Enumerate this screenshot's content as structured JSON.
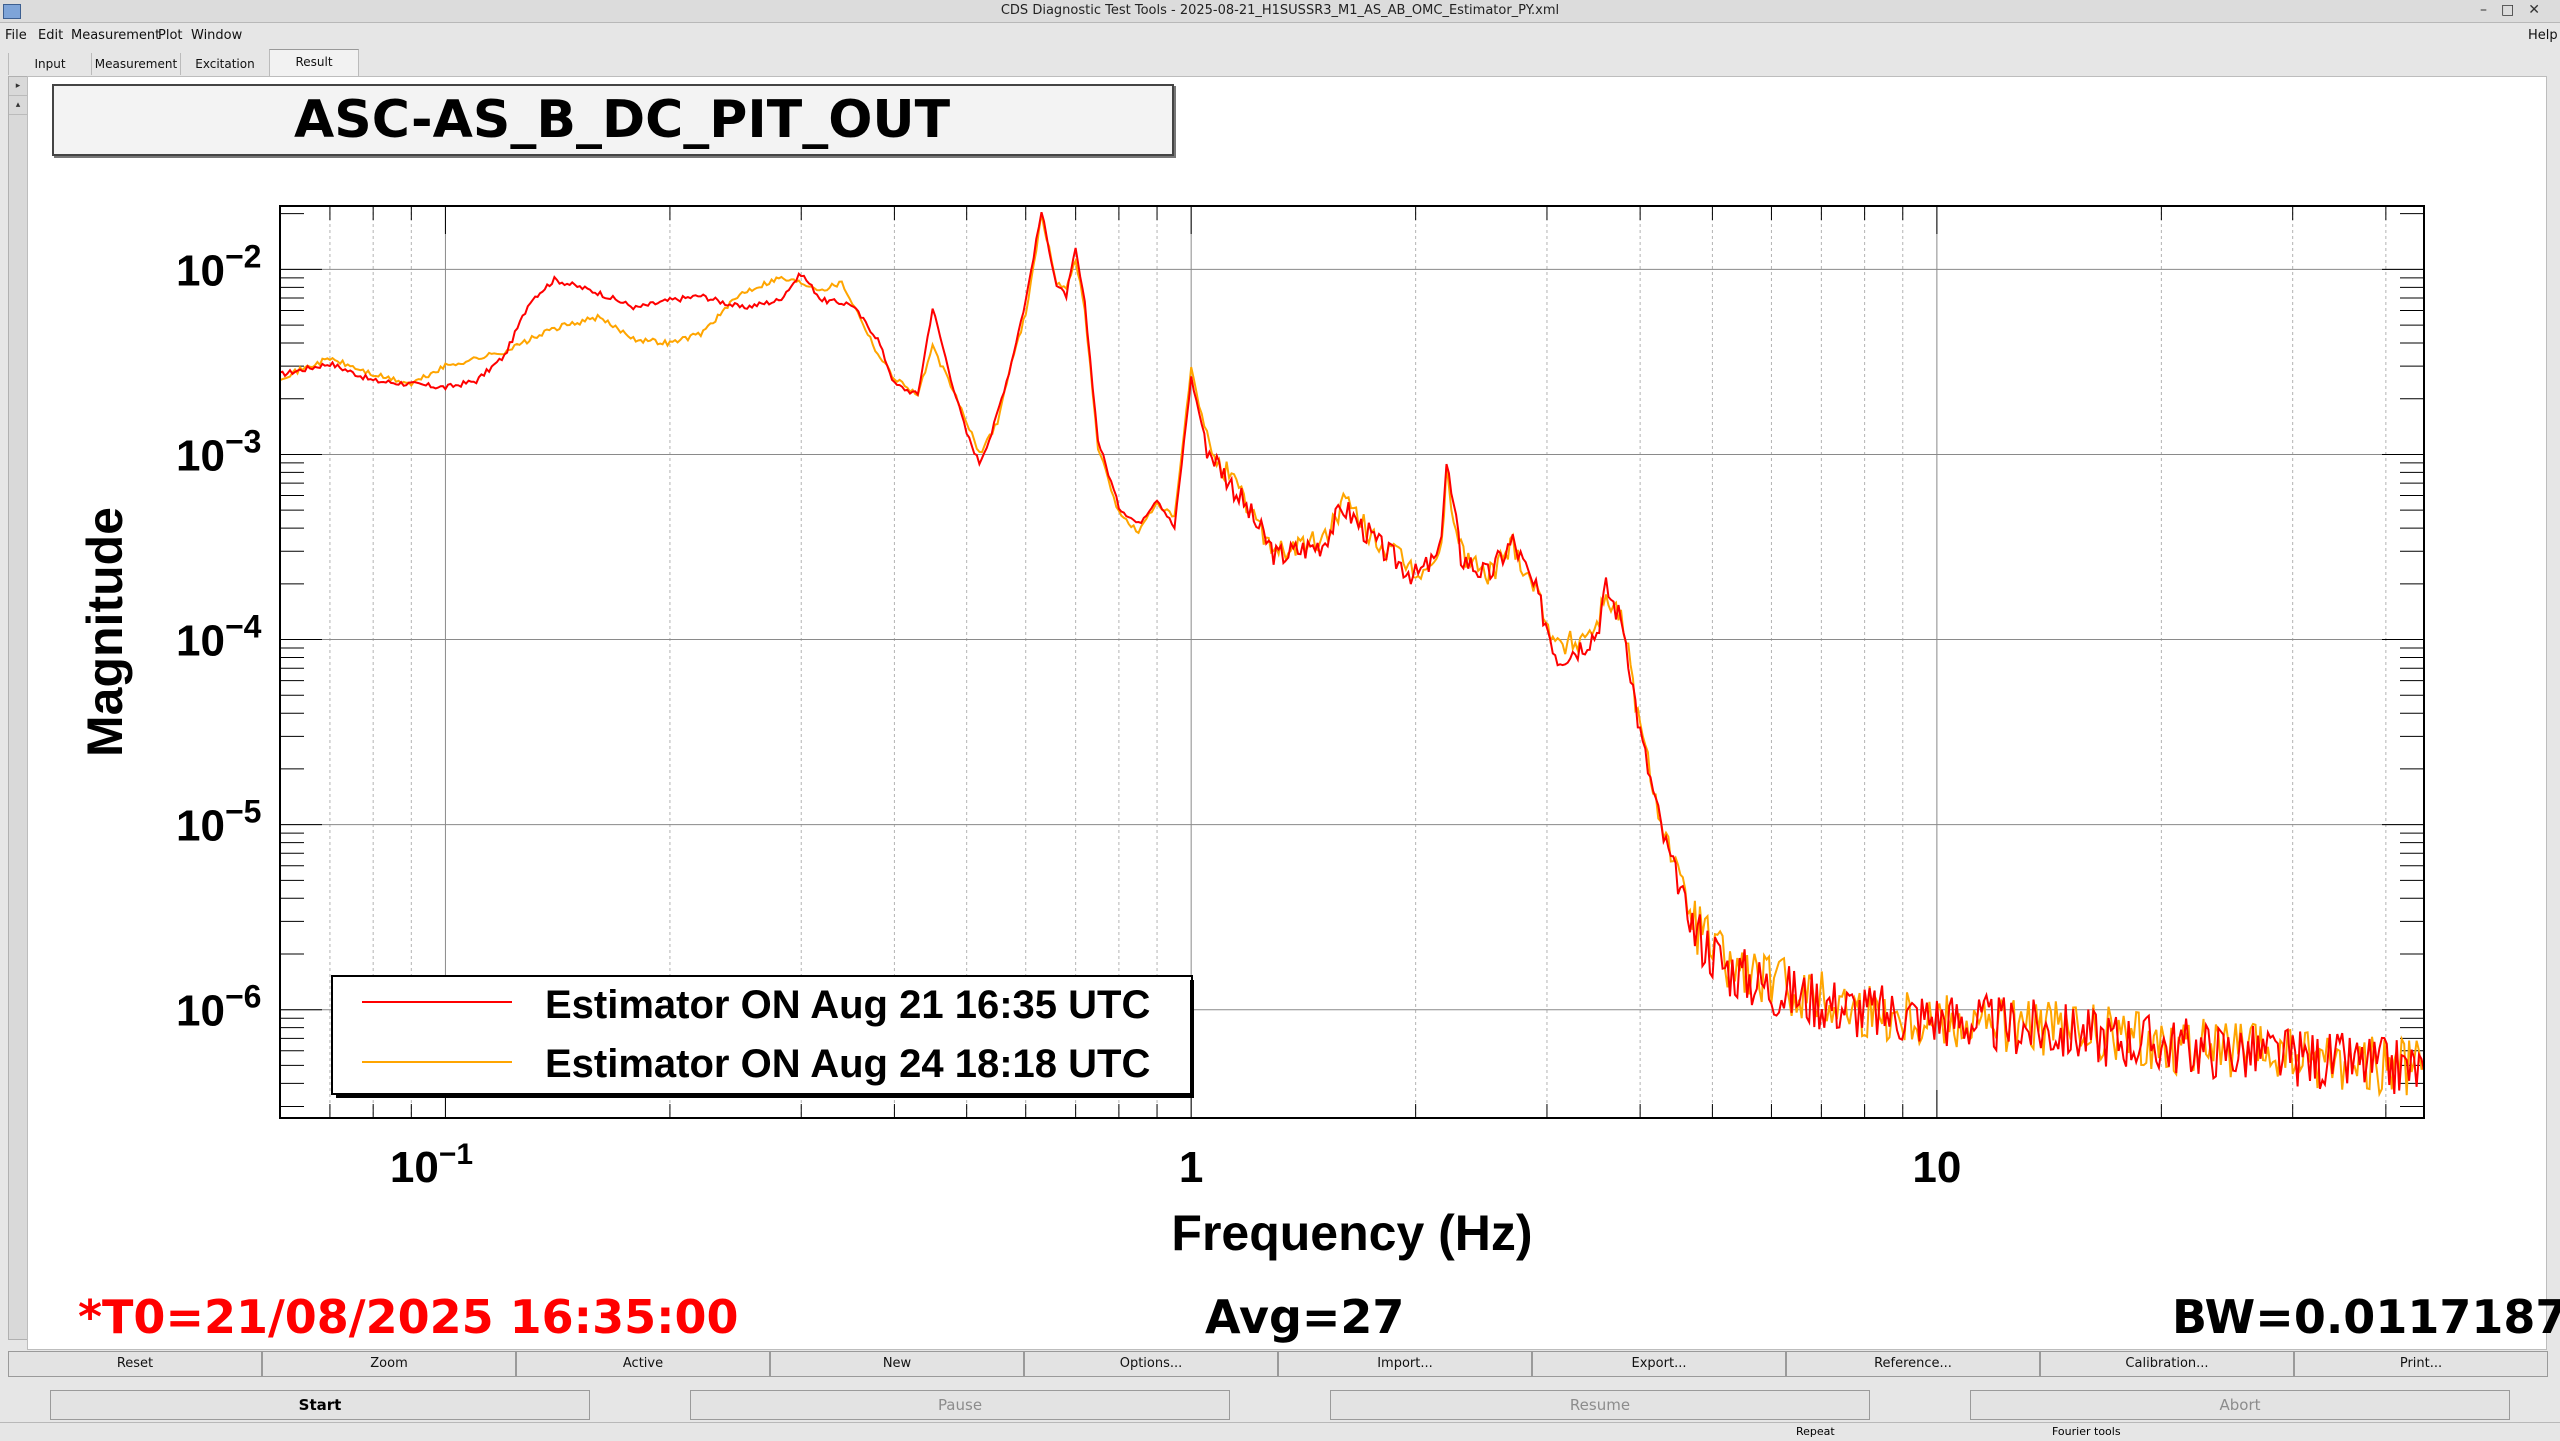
{
  "window": {
    "title": "CDS Diagnostic Test Tools - 2025-08-21_H1SUSSR3_M1_AS_AB_OMC_Estimator_PY.xml",
    "help": "Help"
  },
  "menu": [
    "File",
    "Edit",
    "Measurement",
    "Plot",
    "Window"
  ],
  "tabs": [
    "Input",
    "Measurement",
    "Excitation",
    "Result"
  ],
  "active_tab": "Result",
  "plot": {
    "title": "ASC-AS_B_DC_PIT_OUT"
  },
  "chart_data": {
    "type": "line",
    "xlabel": "Frequency (Hz)",
    "ylabel": "Magnitude",
    "xscale": "log",
    "yscale": "log",
    "xlim": [
      0.06,
      45
    ],
    "ylim": [
      2.6e-07,
      0.022
    ],
    "x_ticks": [
      {
        "value": 0.1,
        "base": "10",
        "exp": "−1"
      },
      {
        "value": 1,
        "base": "1",
        "exp": ""
      },
      {
        "value": 10,
        "base": "10",
        "exp": ""
      }
    ],
    "y_ticks": [
      {
        "value": 0.01,
        "base": "10",
        "exp": "−2"
      },
      {
        "value": 0.001,
        "base": "10",
        "exp": "−3"
      },
      {
        "value": 0.0001,
        "base": "10",
        "exp": "−4"
      },
      {
        "value": 1e-05,
        "base": "10",
        "exp": "−5"
      },
      {
        "value": 1e-06,
        "base": "10",
        "exp": "−6"
      }
    ],
    "grid": true,
    "legend_position": "bottom-left",
    "series": [
      {
        "name": "Estimator ON Aug 21 16:35 UTC",
        "color": "#ff0000",
        "points": [
          [
            0.06,
            0.0027
          ],
          [
            0.07,
            0.0031
          ],
          [
            0.08,
            0.0025
          ],
          [
            0.09,
            0.0024
          ],
          [
            0.1,
            0.0023
          ],
          [
            0.11,
            0.0025
          ],
          [
            0.12,
            0.0034
          ],
          [
            0.13,
            0.0068
          ],
          [
            0.14,
            0.0088
          ],
          [
            0.16,
            0.0075
          ],
          [
            0.18,
            0.0062
          ],
          [
            0.2,
            0.0068
          ],
          [
            0.22,
            0.0072
          ],
          [
            0.25,
            0.0062
          ],
          [
            0.28,
            0.0068
          ],
          [
            0.3,
            0.0095
          ],
          [
            0.32,
            0.0068
          ],
          [
            0.35,
            0.0065
          ],
          [
            0.38,
            0.0042
          ],
          [
            0.4,
            0.0024
          ],
          [
            0.43,
            0.0021
          ],
          [
            0.45,
            0.0062
          ],
          [
            0.48,
            0.0023
          ],
          [
            0.5,
            0.0013
          ],
          [
            0.52,
            0.0009
          ],
          [
            0.54,
            0.0013
          ],
          [
            0.57,
            0.0028
          ],
          [
            0.6,
            0.0068
          ],
          [
            0.63,
            0.0205
          ],
          [
            0.66,
            0.0082
          ],
          [
            0.68,
            0.0072
          ],
          [
            0.7,
            0.0128
          ],
          [
            0.72,
            0.0065
          ],
          [
            0.75,
            0.0012
          ],
          [
            0.8,
            0.00052
          ],
          [
            0.85,
            0.00042
          ],
          [
            0.9,
            0.00058
          ],
          [
            0.95,
            0.0004
          ],
          [
            1.0,
            0.0026
          ],
          [
            1.05,
            0.0011
          ],
          [
            1.15,
            0.00063
          ],
          [
            1.3,
            0.00028
          ],
          [
            1.5,
            0.00033
          ],
          [
            1.6,
            0.00052
          ],
          [
            1.8,
            0.00031
          ],
          [
            2.0,
            0.00022
          ],
          [
            2.15,
            0.00028
          ],
          [
            2.2,
            0.0009
          ],
          [
            2.3,
            0.00028
          ],
          [
            2.5,
            0.00022
          ],
          [
            2.7,
            0.00034
          ],
          [
            2.9,
            0.00018
          ],
          [
            3.1,
            8e-05
          ],
          [
            3.3,
            9e-05
          ],
          [
            3.5,
            0.00011
          ],
          [
            3.6,
            0.00019
          ],
          [
            3.8,
            0.00012
          ],
          [
            4.0,
            3.1e-05
          ],
          [
            4.3,
            8.5e-06
          ],
          [
            4.7,
            2.8e-06
          ],
          [
            5.2,
            1.7e-06
          ],
          [
            6.0,
            1.3e-06
          ],
          [
            8.0,
            9.7e-07
          ],
          [
            10,
            9e-07
          ],
          [
            15,
            7.5e-07
          ],
          [
            20,
            6.5e-07
          ],
          [
            30,
            5.5e-07
          ],
          [
            45,
            4.7e-07
          ]
        ]
      },
      {
        "name": "Estimator ON Aug 24 18:18 UTC",
        "color": "#ffa500",
        "points": [
          [
            0.06,
            0.0026
          ],
          [
            0.07,
            0.0033
          ],
          [
            0.08,
            0.0027
          ],
          [
            0.09,
            0.0024
          ],
          [
            0.1,
            0.003
          ],
          [
            0.11,
            0.0033
          ],
          [
            0.12,
            0.0036
          ],
          [
            0.14,
            0.0048
          ],
          [
            0.16,
            0.0055
          ],
          [
            0.18,
            0.0042
          ],
          [
            0.2,
            0.004
          ],
          [
            0.22,
            0.0045
          ],
          [
            0.25,
            0.0075
          ],
          [
            0.28,
            0.009
          ],
          [
            0.3,
            0.0085
          ],
          [
            0.32,
            0.0078
          ],
          [
            0.34,
            0.0085
          ],
          [
            0.36,
            0.0055
          ],
          [
            0.38,
            0.0035
          ],
          [
            0.4,
            0.0026
          ],
          [
            0.43,
            0.0021
          ],
          [
            0.45,
            0.0038
          ],
          [
            0.48,
            0.0022
          ],
          [
            0.5,
            0.0015
          ],
          [
            0.52,
            0.001
          ],
          [
            0.55,
            0.0015
          ],
          [
            0.57,
            0.0028
          ],
          [
            0.6,
            0.0058
          ],
          [
            0.63,
            0.0195
          ],
          [
            0.66,
            0.0085
          ],
          [
            0.68,
            0.0078
          ],
          [
            0.7,
            0.0115
          ],
          [
            0.72,
            0.006
          ],
          [
            0.75,
            0.0011
          ],
          [
            0.8,
            0.00048
          ],
          [
            0.85,
            0.00038
          ],
          [
            0.9,
            0.00055
          ],
          [
            0.95,
            0.00045
          ],
          [
            1.0,
            0.0029
          ],
          [
            1.05,
            0.0012
          ],
          [
            1.15,
            0.00065
          ],
          [
            1.3,
            0.0003
          ],
          [
            1.5,
            0.00034
          ],
          [
            1.6,
            0.00055
          ],
          [
            1.8,
            0.00032
          ],
          [
            2.0,
            0.00023
          ],
          [
            2.15,
            0.00026
          ],
          [
            2.2,
            0.00075
          ],
          [
            2.3,
            0.0003
          ],
          [
            2.5,
            0.00022
          ],
          [
            2.7,
            0.00033
          ],
          [
            2.9,
            0.00019
          ],
          [
            3.1,
            9e-05
          ],
          [
            3.3,
            0.0001
          ],
          [
            3.5,
            0.00012
          ],
          [
            3.6,
            0.00018
          ],
          [
            3.8,
            0.00012
          ],
          [
            4.0,
            3.3e-05
          ],
          [
            4.3,
            9.5e-06
          ],
          [
            4.7,
            3.1e-06
          ],
          [
            5.2,
            1.8e-06
          ],
          [
            6.0,
            1.4e-06
          ],
          [
            8.0,
            1e-06
          ],
          [
            10,
            9.2e-07
          ],
          [
            15,
            7.7e-07
          ],
          [
            20,
            6.6e-07
          ],
          [
            30,
            5.6e-07
          ],
          [
            45,
            4.8e-07
          ]
        ]
      }
    ]
  },
  "footer": {
    "t0": "*T0=21/08/2025 16:35:00",
    "avg": "Avg=27",
    "bw": "BW=0.0117187"
  },
  "buttons_row1": [
    "Reset",
    "Zoom",
    "Active",
    "New",
    "Options...",
    "Import...",
    "Export...",
    "Reference...",
    "Calibration...",
    "Print..."
  ],
  "buttons_row2": [
    "Start",
    "Pause",
    "Resume",
    "Abort"
  ],
  "status": {
    "repeat": "Repeat",
    "fourier": "Fourier tools"
  },
  "colors": {
    "trace1": "#ff0000",
    "trace2": "#ffa500",
    "footer_t0": "#ff0000"
  }
}
